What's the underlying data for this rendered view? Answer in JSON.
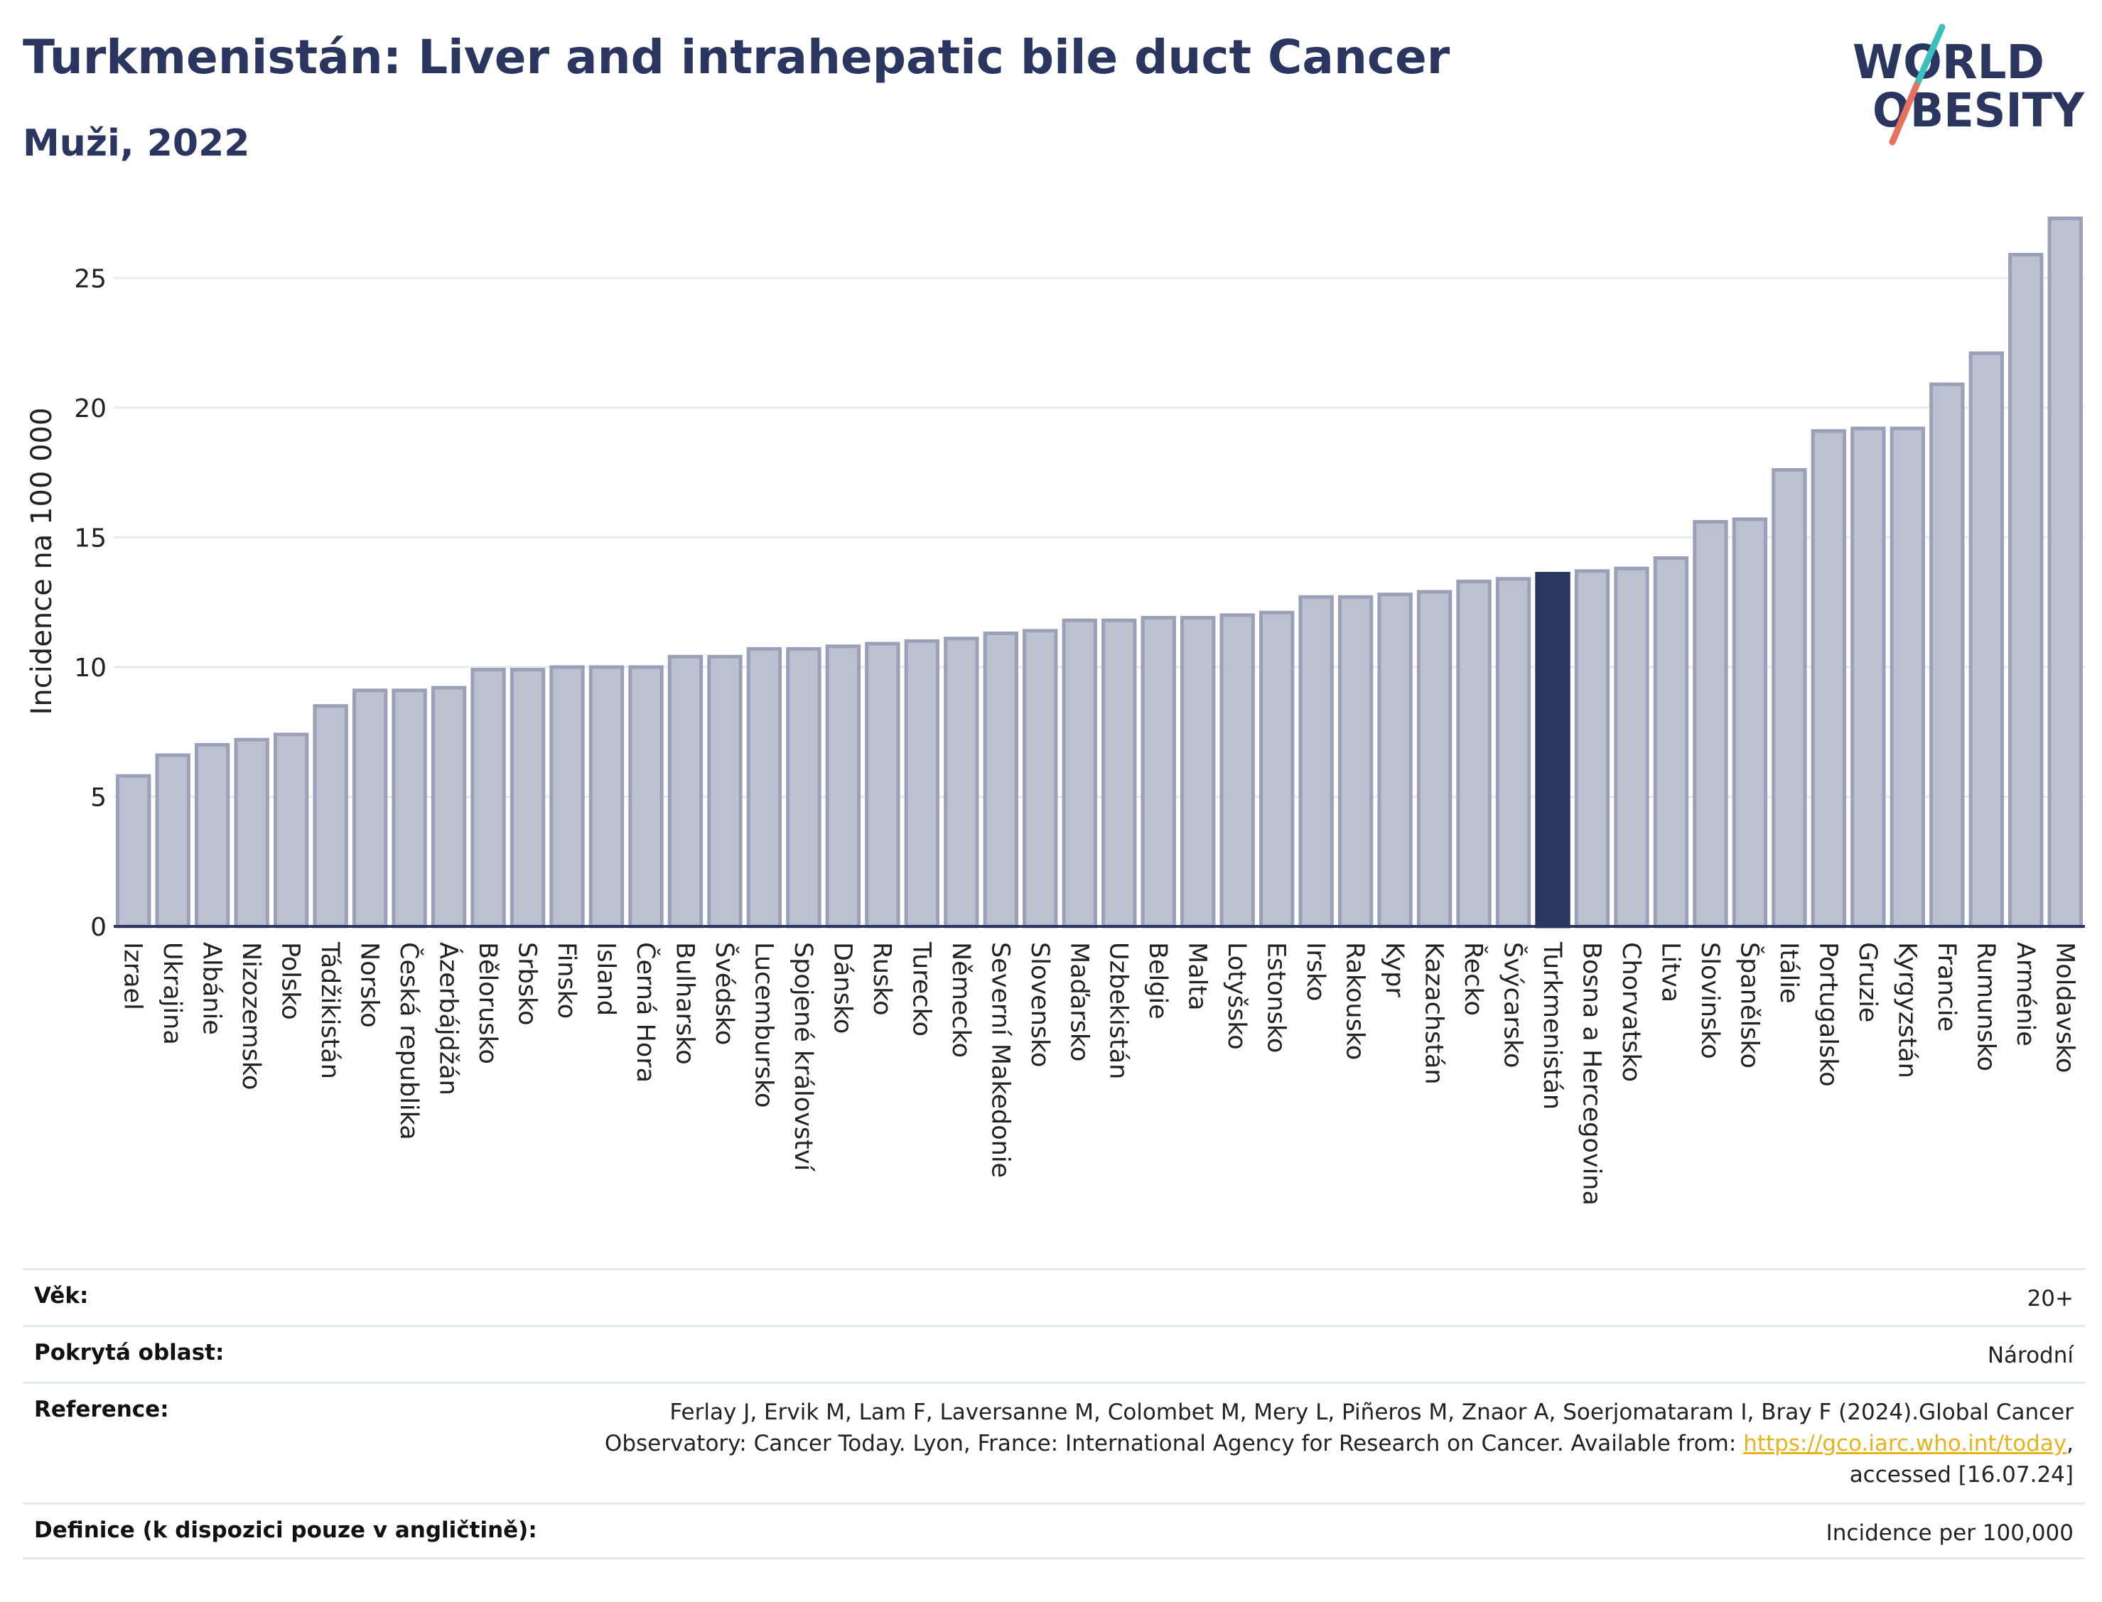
{
  "header": {
    "title": "Turkmenistán: Liver and intrahepatic bile duct Cancer",
    "subtitle": "Muži, 2022"
  },
  "logo": {
    "line1": "WORLD",
    "line2": "OBESITY"
  },
  "colors": {
    "bar": "#bcc1d0",
    "bar_stroke": "#9aa0b8",
    "highlight": "#2a3560",
    "title": "#2a3560",
    "grid": "#e6ebf1",
    "logo_teal": "#3bbfbf",
    "logo_coral": "#e8705e",
    "link": "#e8b21a"
  },
  "chart_data": {
    "type": "bar",
    "ylabel": "Incidence na 100 000",
    "ylim": [
      0,
      27.5
    ],
    "yticks": [
      0,
      5,
      10,
      15,
      20,
      25
    ],
    "grid": true,
    "highlight": "Turkmenistán",
    "categories": [
      "Izrael",
      "Ukrajina",
      "Albánie",
      "Nizozemsko",
      "Polsko",
      "Tádžikistán",
      "Norsko",
      "Česká republika",
      "Ázerbájdžán",
      "Bělorusko",
      "Srbsko",
      "Finsko",
      "Island",
      "Černá Hora",
      "Bulharsko",
      "Švédsko",
      "Lucembursko",
      "Spojené království",
      "Dánsko",
      "Rusko",
      "Turecko",
      "Německo",
      "Severní Makedonie",
      "Slovensko",
      "Maďarsko",
      "Uzbekistán",
      "Belgie",
      "Malta",
      "Lotyšsko",
      "Estonsko",
      "Irsko",
      "Rakousko",
      "Kypr",
      "Kazachstán",
      "Řecko",
      "Švýcarsko",
      "Turkmenistán",
      "Bosna a Hercegovina",
      "Chorvatsko",
      "Litva",
      "Slovinsko",
      "Španělsko",
      "Itálie",
      "Portugalsko",
      "Gruzie",
      "Kyrgyzstán",
      "Francie",
      "Rumunsko",
      "Arménie",
      "Moldavsko"
    ],
    "values": [
      5.8,
      6.6,
      7.0,
      7.2,
      7.4,
      8.5,
      9.1,
      9.1,
      9.2,
      9.9,
      9.9,
      10.0,
      10.0,
      10.0,
      10.4,
      10.4,
      10.7,
      10.7,
      10.8,
      10.9,
      11.0,
      11.1,
      11.3,
      11.4,
      11.8,
      11.8,
      11.9,
      11.9,
      12.0,
      12.1,
      12.7,
      12.7,
      12.8,
      12.9,
      13.3,
      13.4,
      13.6,
      13.7,
      13.8,
      14.2,
      15.6,
      15.7,
      17.6,
      19.1,
      19.2,
      19.2,
      20.9,
      22.1,
      25.9,
      27.3
    ]
  },
  "info": {
    "age_label": "Věk:",
    "age_value": "20+",
    "coverage_label": "Pokrytá oblast:",
    "coverage_value": "Národní",
    "reference_label": "Reference:",
    "reference_line1": "Ferlay J, Ervik M, Lam F, Laversanne M, Colombet M, Mery L, Piñeros M, Znaor A, Soerjomataram I, Bray F (2024).Global Cancer",
    "reference_line2": "Observatory: Cancer Today. Lyon, France: International Agency for Research on Cancer. Available from: ",
    "reference_link": "https://gco.iarc.who.int/today",
    "reference_line2_end": ",",
    "reference_line3": "accessed [16.07.24]",
    "definition_label": "Definice (k dispozici pouze v angličtině):",
    "definition_value": "Incidence per 100,000"
  }
}
